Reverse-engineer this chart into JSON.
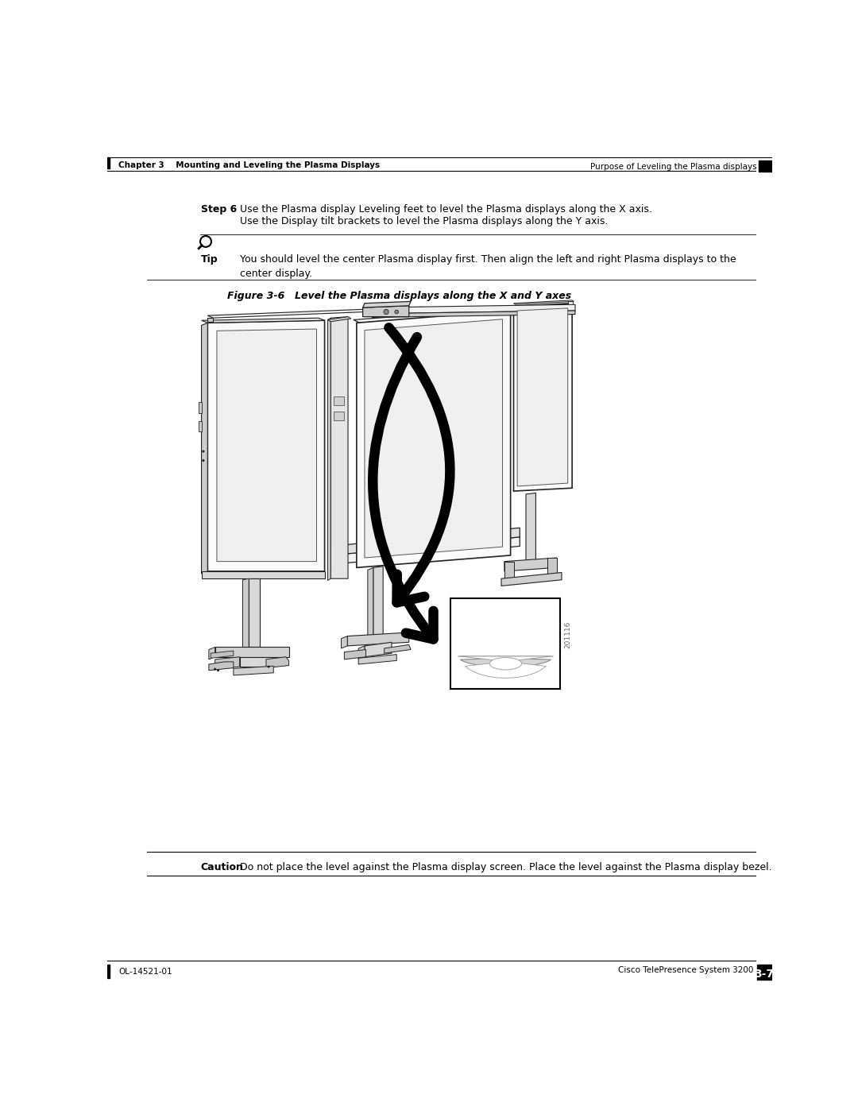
{
  "page_bg": "#ffffff",
  "header_left_text": "Chapter 3    Mounting and Leveling the Plasma Displays",
  "header_right_text": "Purpose of Leveling the Plasma displays",
  "footer_left_text": "OL-14521-01",
  "footer_right_text": "Cisco TelePresence System 3200",
  "footer_page": "3-7",
  "step_label": "Step 6",
  "step_text_line1": "Use the Plasma display Leveling feet to level the Plasma displays along the X axis.",
  "step_text_line2": "Use the Display tilt brackets to level the Plasma displays along the Y axis.",
  "tip_label": "Tip",
  "tip_text": "You should level the center Plasma display first. Then align the left and right Plasma displays to the\ncenter display.",
  "figure_label": "Figure 3-6",
  "figure_caption": "Level the Plasma displays along the X and Y axes",
  "caution_label": "Caution",
  "caution_text": "Do not place the level against the Plasma display screen. Place the level against the Plasma display bezel.",
  "watermark_text": "201116",
  "lw_main": 1.2,
  "lw_thin": 0.7
}
